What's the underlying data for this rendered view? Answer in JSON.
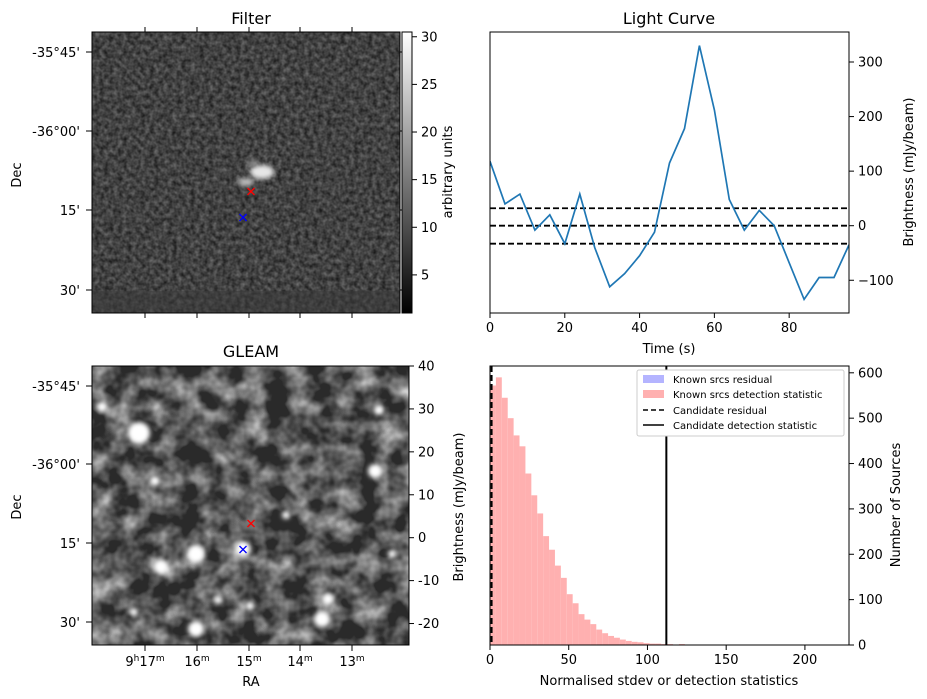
{
  "chart_data": [
    {
      "id": "filter",
      "type": "heatmap",
      "title": "Filter",
      "ylabel": "Dec",
      "dec_ticks": [
        "-35°45'",
        "-36°00'",
        "15'",
        "30'"
      ],
      "colorbar": {
        "label": "arbitrary units",
        "range": [
          1,
          30.5
        ],
        "ticks": [
          5,
          10,
          15,
          20,
          25,
          30
        ]
      },
      "markers": [
        {
          "label": "candidate",
          "color": "#ff0000"
        },
        {
          "label": "known source",
          "color": "#0000ff"
        }
      ]
    },
    {
      "id": "light_curve",
      "type": "line",
      "title": "Light Curve",
      "xlabel": "Time (s)",
      "ylabel": "Brightness (mJy/beam)",
      "xlim": [
        0,
        96
      ],
      "ylim": [
        -160,
        355
      ],
      "xticks": [
        0,
        20,
        40,
        60,
        80
      ],
      "yticks": [
        -100,
        0,
        100,
        200,
        300
      ],
      "x": [
        0,
        4,
        8,
        12,
        16,
        20,
        24,
        28,
        32,
        36,
        40,
        44,
        48,
        52,
        56,
        60,
        64,
        68,
        72,
        76,
        80,
        84,
        88,
        92,
        96
      ],
      "values": [
        118,
        40,
        58,
        -8,
        20,
        -33,
        58,
        -40,
        -112,
        -88,
        -55,
        -12,
        115,
        178,
        330,
        212,
        48,
        -8,
        28,
        0,
        -68,
        -135,
        -95,
        -95,
        -35
      ],
      "color": "#1f77b4",
      "hlines": [
        32,
        0,
        -33
      ]
    },
    {
      "id": "gleam",
      "type": "heatmap",
      "title": "GLEAM",
      "xlabel": "RA",
      "ylabel": "Dec",
      "ra_ticks": [
        {
          "h": "9",
          "hs": "h",
          "m": "17",
          "ms": "m"
        },
        {
          "h": "",
          "hs": "",
          "m": "16",
          "ms": "m"
        },
        {
          "h": "",
          "hs": "",
          "m": "15",
          "ms": "m"
        },
        {
          "h": "",
          "hs": "",
          "m": "14",
          "ms": "m"
        },
        {
          "h": "",
          "hs": "",
          "m": "13",
          "ms": "m"
        }
      ],
      "dec_ticks": [
        "-35°45'",
        "-36°00'",
        "15'",
        "30'"
      ],
      "colorbar": {
        "label": "Brightness (mJy/beam)",
        "range": [
          -25,
          40
        ],
        "ticks": [
          -20,
          -10,
          0,
          10,
          20,
          30,
          40
        ]
      },
      "markers": [
        {
          "label": "candidate",
          "color": "#ff0000"
        },
        {
          "label": "known source",
          "color": "#0000ff"
        }
      ]
    },
    {
      "id": "histogram",
      "type": "bar",
      "xlabel": "Normalised stdev or detection statistics",
      "ylabel": "Number of Sources",
      "xlim": [
        0,
        228
      ],
      "ylim": [
        0,
        615
      ],
      "xticks": [
        0,
        50,
        100,
        150,
        200
      ],
      "yticks": [
        0,
        100,
        200,
        300,
        400,
        500,
        600
      ],
      "bin_width": 3.75,
      "bin_start": 0,
      "counts": [
        572,
        590,
        545,
        500,
        462,
        438,
        378,
        330,
        290,
        240,
        210,
        175,
        148,
        112,
        92,
        68,
        56,
        46,
        34,
        26,
        20,
        16,
        12,
        9,
        7,
        6,
        4,
        3,
        3,
        2,
        2,
        1,
        2,
        1,
        1,
        1,
        0,
        1,
        0,
        0,
        1,
        0,
        0,
        0,
        1,
        0,
        0,
        0,
        0,
        0,
        0,
        0,
        0,
        0,
        0,
        0,
        0
      ],
      "hist_color": "#ffb0b0",
      "known_residual_color": "#b4b4ff",
      "candidate_residual": 1,
      "candidate_detection": 112,
      "legend": [
        "Known srcs residual",
        "Known srcs detection statistic",
        "Candidate residual",
        "Candidate detection statistic"
      ]
    }
  ]
}
